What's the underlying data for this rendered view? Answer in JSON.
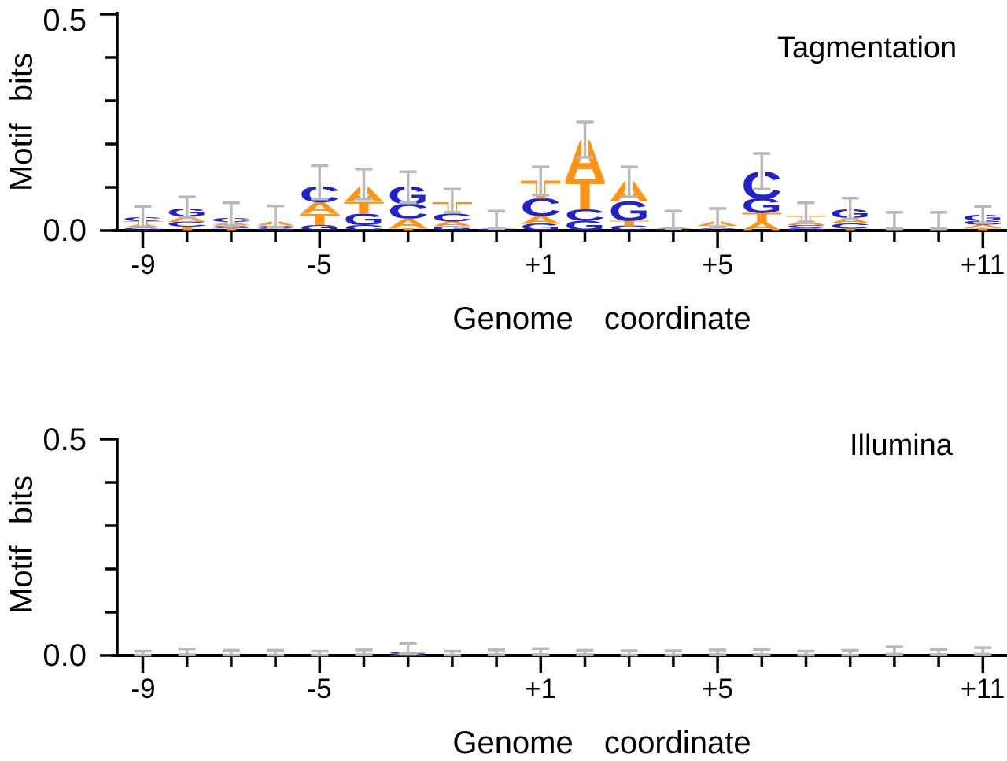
{
  "chart_data": {
    "type": "sequence_logo",
    "description": "Two DNA sequence-logo panels showing motif information content (bits) per genome coordinate, with gray error bars. A/T letters orange, C/G letters blue.",
    "base_colors": {
      "A": "#ff9314",
      "T": "#ff9314",
      "C": "#2222cc",
      "G": "#2222cc"
    },
    "errorbar_color": "#b9b9b9",
    "axis_color": "#000000",
    "panels": [
      {
        "title": "Tagmentation",
        "xlabel": "Genome coordinate",
        "ylabel": "Motif bits",
        "ylim": [
          0.0,
          0.5
        ],
        "ytick_labels": [
          "0.0",
          "0.5"
        ],
        "yticks_minor": [
          0.1,
          0.2,
          0.3,
          0.4
        ],
        "xtick_labels": [
          {
            "index": 0,
            "label": "-9"
          },
          {
            "index": 4,
            "label": "-5"
          },
          {
            "index": 9,
            "label": "+1"
          },
          {
            "index": 13,
            "label": "+5"
          },
          {
            "index": 19,
            "label": "+11"
          }
        ],
        "positions": [
          {
            "coord": "-9",
            "stack": [
              [
                "G",
                0.006
              ],
              [
                "A",
                0.007
              ],
              [
                "T",
                0.008
              ],
              [
                "C",
                0.009
              ]
            ],
            "err": [
              0.009,
              0.056
            ]
          },
          {
            "coord": "-8",
            "stack": [
              [
                "T",
                0.008
              ],
              [
                "C",
                0.011
              ],
              [
                "A",
                0.013
              ],
              [
                "G",
                0.019
              ]
            ],
            "err": [
              0.03,
              0.078
            ]
          },
          {
            "coord": "-7",
            "stack": [
              [
                "T",
                0.005
              ],
              [
                "G",
                0.006
              ],
              [
                "A",
                0.008
              ],
              [
                "C",
                0.009
              ]
            ],
            "err": [
              0.012,
              0.064
            ]
          },
          {
            "coord": "-6",
            "stack": [
              [
                "G",
                0.005
              ],
              [
                "C",
                0.006
              ],
              [
                "A",
                0.009
              ]
            ],
            "err": [
              0.008,
              0.057
            ]
          },
          {
            "coord": "-5",
            "stack": [
              [
                "G",
                0.012
              ],
              [
                "T",
                0.026
              ],
              [
                "A",
                0.027
              ],
              [
                "C",
                0.036
              ]
            ],
            "err": [
              0.073,
              0.15
            ]
          },
          {
            "coord": "-4",
            "stack": [
              [
                "C",
                0.012
              ],
              [
                "G",
                0.027
              ],
              [
                "T",
                0.027
              ],
              [
                "A",
                0.033
              ]
            ],
            "err": [
              0.073,
              0.142
            ]
          },
          {
            "coord": "-3",
            "stack": [
              [
                "T",
                0.005
              ],
              [
                "A",
                0.022
              ],
              [
                "C",
                0.033
              ],
              [
                "G",
                0.04
              ]
            ],
            "err": [
              0.064,
              0.136
            ]
          },
          {
            "coord": "-2",
            "stack": [
              [
                "G",
                0.009
              ],
              [
                "A",
                0.011
              ],
              [
                "C",
                0.018
              ],
              [
                "T",
                0.027
              ]
            ],
            "err": [
              0.042,
              0.096
            ]
          },
          {
            "coord": "-1",
            "stack": [
              [
                "C",
                0.003
              ],
              [
                "T",
                0.004
              ]
            ],
            "err": [
              0.005,
              0.045
            ]
          },
          {
            "coord": "+1",
            "stack": [
              [
                "G",
                0.015
              ],
              [
                "A",
                0.018
              ],
              [
                "C",
                0.04
              ],
              [
                "T",
                0.042
              ]
            ],
            "err": [
              0.082,
              0.147
            ]
          },
          {
            "coord": "+2",
            "stack": [
              [
                "G",
                0.022
              ],
              [
                "C",
                0.027
              ],
              [
                "T",
                0.069
              ],
              [
                "A",
                0.089
              ]
            ],
            "err": [
              0.169,
              0.251
            ]
          },
          {
            "coord": "+3",
            "stack": [
              [
                "C",
                0.01
              ],
              [
                "T",
                0.012
              ],
              [
                "G",
                0.044
              ],
              [
                "A",
                0.046
              ]
            ],
            "err": [
              0.078,
              0.147
            ]
          },
          {
            "coord": "+4",
            "stack": [
              [
                "C",
                0.003
              ],
              [
                "A",
                0.004
              ]
            ],
            "err": [
              0.005,
              0.045
            ]
          },
          {
            "coord": "+5",
            "stack": [
              [
                "C",
                0.004
              ],
              [
                "T",
                0.007
              ],
              [
                "A",
                0.009
              ]
            ],
            "err": [
              0.009,
              0.051
            ]
          },
          {
            "coord": "+6",
            "stack": [
              [
                "A",
                0.018
              ],
              [
                "T",
                0.022
              ],
              [
                "G",
                0.033
              ],
              [
                "C",
                0.062
              ]
            ],
            "err": [
              0.096,
              0.178
            ]
          },
          {
            "coord": "+7",
            "stack": [
              [
                "G",
                0.005
              ],
              [
                "C",
                0.007
              ],
              [
                "A",
                0.009
              ],
              [
                "T",
                0.012
              ]
            ],
            "err": [
              0.02,
              0.064
            ]
          },
          {
            "coord": "+8",
            "stack": [
              [
                "T",
                0.004
              ],
              [
                "C",
                0.012
              ],
              [
                "A",
                0.012
              ],
              [
                "G",
                0.02
              ]
            ],
            "err": [
              0.027,
              0.075
            ]
          },
          {
            "coord": "+9",
            "stack": [],
            "err": [
              0.004,
              0.042
            ]
          },
          {
            "coord": "+10",
            "stack": [],
            "err": [
              0.004,
              0.042
            ]
          },
          {
            "coord": "+11",
            "stack": [
              [
                "T",
                0.005
              ],
              [
                "A",
                0.008
              ],
              [
                "C",
                0.009
              ],
              [
                "G",
                0.014
              ]
            ],
            "err": [
              0.018,
              0.056
            ]
          }
        ]
      },
      {
        "title": "Illumina",
        "xlabel": "Genome coordinate",
        "ylabel": "Motif bits",
        "ylim": [
          0.0,
          0.5
        ],
        "ytick_labels": [
          "0.0",
          "0.5"
        ],
        "yticks_minor": [
          0.1,
          0.2,
          0.3,
          0.4
        ],
        "xtick_labels": [
          {
            "index": 0,
            "label": "-9"
          },
          {
            "index": 4,
            "label": "-5"
          },
          {
            "index": 9,
            "label": "+1"
          },
          {
            "index": 13,
            "label": "+5"
          },
          {
            "index": 19,
            "label": "+11"
          }
        ],
        "positions": [
          {
            "coord": "-9",
            "stack": [],
            "err": [
              0.001,
              0.01
            ]
          },
          {
            "coord": "-8",
            "stack": [],
            "err": [
              0.002,
              0.015
            ]
          },
          {
            "coord": "-7",
            "stack": [],
            "err": [
              0.001,
              0.012
            ]
          },
          {
            "coord": "-6",
            "stack": [],
            "err": [
              0.001,
              0.012
            ]
          },
          {
            "coord": "-5",
            "stack": [],
            "err": [
              0.001,
              0.01
            ]
          },
          {
            "coord": "-4",
            "stack": [],
            "err": [
              0.002,
              0.013
            ]
          },
          {
            "coord": "-3",
            "stack": [
              [
                "A",
                0.003
              ],
              [
                "C",
                0.004
              ]
            ],
            "err": [
              0.004,
              0.028
            ]
          },
          {
            "coord": "-2",
            "stack": [],
            "err": [
              0.001,
              0.01
            ]
          },
          {
            "coord": "-1",
            "stack": [],
            "err": [
              0.002,
              0.013
            ]
          },
          {
            "coord": "+1",
            "stack": [],
            "err": [
              0.002,
              0.016
            ]
          },
          {
            "coord": "+2",
            "stack": [],
            "err": [
              0.002,
              0.012
            ]
          },
          {
            "coord": "+3",
            "stack": [],
            "err": [
              0.001,
              0.011
            ]
          },
          {
            "coord": "+4",
            "stack": [],
            "err": [
              0.001,
              0.011
            ]
          },
          {
            "coord": "+5",
            "stack": [],
            "err": [
              0.002,
              0.013
            ]
          },
          {
            "coord": "+6",
            "stack": [],
            "err": [
              0.002,
              0.014
            ]
          },
          {
            "coord": "+7",
            "stack": [],
            "err": [
              0.001,
              0.01
            ]
          },
          {
            "coord": "+8",
            "stack": [],
            "err": [
              0.001,
              0.012
            ]
          },
          {
            "coord": "+9",
            "stack": [],
            "err": [
              0.003,
              0.02
            ]
          },
          {
            "coord": "+10",
            "stack": [],
            "err": [
              0.002,
              0.014
            ]
          },
          {
            "coord": "+11",
            "stack": [],
            "err": [
              0.003,
              0.018
            ]
          }
        ]
      }
    ]
  }
}
